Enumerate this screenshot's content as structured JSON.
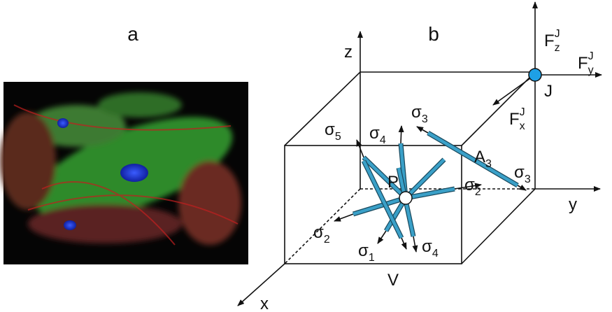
{
  "panels": {
    "a": "a",
    "b": "b"
  },
  "axes": {
    "x": "x",
    "y": "y",
    "z": "z"
  },
  "labels": {
    "volume": "V",
    "point": "P",
    "joint": "J",
    "area": {
      "base": "A",
      "sub": "3"
    }
  },
  "forces": [
    {
      "base": "F",
      "sub": "z",
      "sup": "J"
    },
    {
      "base": "F",
      "sub": "y",
      "sup": "J"
    },
    {
      "base": "F",
      "sub": "x",
      "sup": "J"
    }
  ],
  "stresses": [
    {
      "base": "σ",
      "sub": "5"
    },
    {
      "base": "σ",
      "sub": "4"
    },
    {
      "base": "σ",
      "sub": "3"
    },
    {
      "base": "σ",
      "sub": "3"
    },
    {
      "base": "σ",
      "sub": "2"
    },
    {
      "base": "σ",
      "sub": "2"
    },
    {
      "base": "σ",
      "sub": "1"
    },
    {
      "base": "σ",
      "sub": "4"
    }
  ]
}
